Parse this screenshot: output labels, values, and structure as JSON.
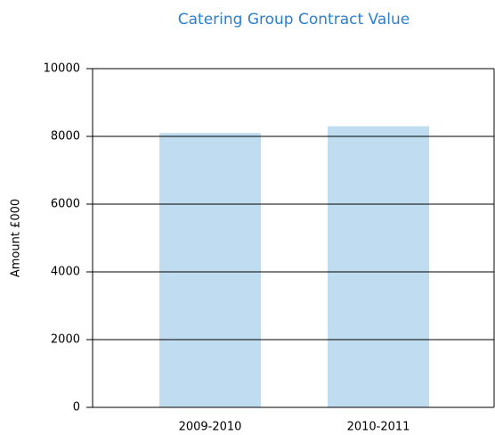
{
  "chart_data": {
    "type": "bar",
    "title": "Catering Group Contract Value",
    "y_label": "Amount £000",
    "categories": [
      "2009-2010",
      "2010-2011"
    ],
    "values": [
      8100,
      8300
    ],
    "color": "#c0dcf0",
    "ylim": [
      0,
      10000
    ],
    "yticks": [
      0,
      2000,
      4000,
      6000,
      8000,
      10000
    ],
    "grid": true
  }
}
